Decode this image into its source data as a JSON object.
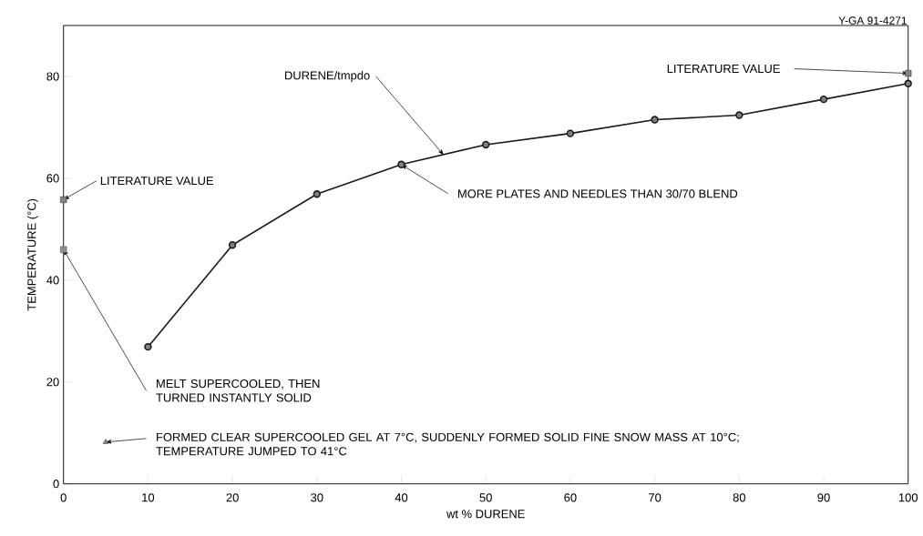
{
  "chart_data": {
    "type": "line",
    "xlabel": "wt % DURENE",
    "ylabel": "TEMPERATURE (°C)",
    "xlim": [
      0,
      100
    ],
    "ylim": [
      0,
      90
    ],
    "xticks": [
      0,
      10,
      20,
      30,
      40,
      50,
      60,
      70,
      80,
      90,
      100
    ],
    "yticks": [
      0,
      20,
      40,
      60,
      80
    ],
    "series": [
      {
        "color": "#1a1a1a",
        "marker": "circle",
        "line_style": "solid",
        "x": [
          10,
          20,
          30,
          40,
          50,
          60,
          70,
          80,
          90,
          100
        ],
        "values": [
          26.9,
          46.9,
          56.9,
          62.7,
          66.6,
          68.8,
          71.5,
          72.4,
          75.5,
          78.6
        ]
      },
      {
        "type": "scatter",
        "color": "#333333",
        "marker": "square",
        "x": [
          0
        ],
        "values": [
          46.0
        ]
      },
      {
        "type": "scatter",
        "color": "#1a1a1a",
        "marker": "square",
        "x": [
          0,
          100
        ],
        "values": [
          55.8,
          80.6
        ]
      },
      {
        "type": "scatter",
        "color": "#1a1a1a",
        "marker": "triangle",
        "x": [
          5
        ],
        "values": [
          8.2
        ]
      }
    ],
    "annotations": [
      {
        "text": "DURENE/tmpdo",
        "x": 45,
        "y": 64.6
      },
      {
        "text": "LITERATURE VALUE",
        "x": 0,
        "y": 55.8
      },
      {
        "text": "LITERATURE VALUE",
        "x": 100,
        "y": 80.6
      },
      {
        "text": "MORE PLATES AND NEEDLES THAN 30/70 BLEND",
        "x": 40,
        "y": 62.7
      },
      {
        "text": "MELT SUPERCOOLED, THEN TURNED INSTANTLY SOLID",
        "x": 0,
        "y": 46.0
      },
      {
        "text": "FORMED CLEAR SUPERCOOLED GEL AT 7°C, SUDDENLY FORMED SOLID FINE SNOW MASS AT 10°C; TEMPERATURE JUMPED TO 41°C",
        "x": 5,
        "y": 8.2
      },
      "Y-GA 91-4271"
    ],
    "grid": false
  }
}
